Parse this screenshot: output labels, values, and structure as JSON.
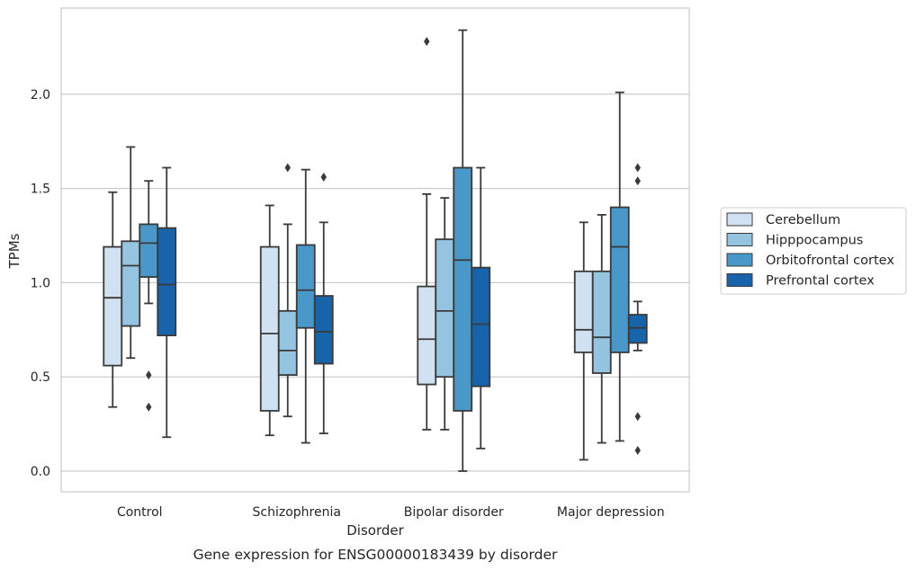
{
  "chart_data": {
    "type": "boxplot",
    "caption": "Gene expression for ENSG00000183439 by disorder",
    "xlabel": "Disorder",
    "ylabel": "TPMs",
    "ylim": [
      -0.11,
      2.46
    ],
    "yticks": [
      0.0,
      0.5,
      1.0,
      1.5,
      2.0
    ],
    "ytick_labels": [
      "0.0",
      "0.5",
      "1.0",
      "1.5",
      "2.0"
    ],
    "grid": "horizontal",
    "legend_position": "right",
    "categories": [
      "Control",
      "Schizophrenia",
      "Bipolar disorder",
      "Major depression"
    ],
    "series": [
      {
        "name": "Cerebellum",
        "color": "#d0e1f2",
        "boxes": [
          {
            "whisker_low": 0.34,
            "q1": 0.56,
            "median": 0.92,
            "q3": 1.19,
            "whisker_high": 1.48,
            "outliers": []
          },
          {
            "whisker_low": 0.19,
            "q1": 0.32,
            "median": 0.73,
            "q3": 1.19,
            "whisker_high": 1.41,
            "outliers": []
          },
          {
            "whisker_low": 0.22,
            "q1": 0.46,
            "median": 0.7,
            "q3": 0.98,
            "whisker_high": 1.47,
            "outliers": [
              2.28
            ]
          },
          {
            "whisker_low": 0.06,
            "q1": 0.63,
            "median": 0.75,
            "q3": 1.06,
            "whisker_high": 1.32,
            "outliers": []
          }
        ]
      },
      {
        "name": "Hipppocampus",
        "color": "#94c4df",
        "boxes": [
          {
            "whisker_low": 0.6,
            "q1": 0.77,
            "median": 1.09,
            "q3": 1.22,
            "whisker_high": 1.72,
            "outliers": []
          },
          {
            "whisker_low": 0.29,
            "q1": 0.51,
            "median": 0.64,
            "q3": 0.85,
            "whisker_high": 1.31,
            "outliers": [
              1.61
            ]
          },
          {
            "whisker_low": 0.22,
            "q1": 0.5,
            "median": 0.85,
            "q3": 1.23,
            "whisker_high": 1.45,
            "outliers": []
          },
          {
            "whisker_low": 0.15,
            "q1": 0.52,
            "median": 0.71,
            "q3": 1.06,
            "whisker_high": 1.36,
            "outliers": []
          }
        ]
      },
      {
        "name": "Orbitofrontal cortex",
        "color": "#4a98c9",
        "boxes": [
          {
            "whisker_low": 0.89,
            "q1": 1.03,
            "median": 1.21,
            "q3": 1.31,
            "whisker_high": 1.54,
            "outliers": [
              0.51,
              0.34
            ]
          },
          {
            "whisker_low": 0.15,
            "q1": 0.76,
            "median": 0.96,
            "q3": 1.2,
            "whisker_high": 1.6,
            "outliers": []
          },
          {
            "whisker_low": 0.0,
            "q1": 0.32,
            "median": 1.12,
            "q3": 1.61,
            "whisker_high": 2.34,
            "outliers": []
          },
          {
            "whisker_low": 0.16,
            "q1": 0.63,
            "median": 1.19,
            "q3": 1.4,
            "whisker_high": 2.01,
            "outliers": []
          }
        ]
      },
      {
        "name": "Prefrontal cortex",
        "color": "#1764ab",
        "boxes": [
          {
            "whisker_low": 0.18,
            "q1": 0.72,
            "median": 0.99,
            "q3": 1.29,
            "whisker_high": 1.61,
            "outliers": []
          },
          {
            "whisker_low": 0.2,
            "q1": 0.57,
            "median": 0.74,
            "q3": 0.93,
            "whisker_high": 1.32,
            "outliers": [
              1.56
            ]
          },
          {
            "whisker_low": 0.12,
            "q1": 0.45,
            "median": 0.78,
            "q3": 1.08,
            "whisker_high": 1.61,
            "outliers": []
          },
          {
            "whisker_low": 0.64,
            "q1": 0.68,
            "median": 0.76,
            "q3": 0.83,
            "whisker_high": 0.9,
            "outliers": [
              1.61,
              1.54,
              0.29,
              0.11
            ]
          }
        ]
      }
    ]
  }
}
